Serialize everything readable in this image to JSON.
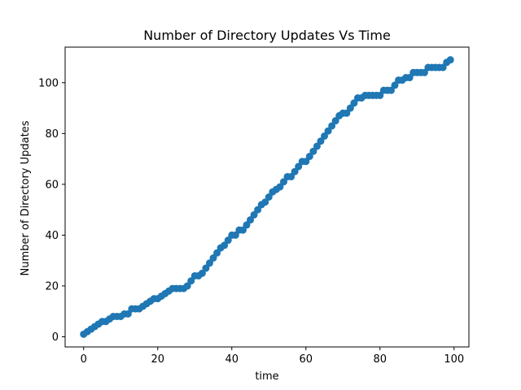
{
  "chart_data": {
    "type": "scatter",
    "title": "Number of Directory Updates Vs Time",
    "xlabel": "time",
    "ylabel": "Number of Directory Updates",
    "xlim": [
      -5,
      104
    ],
    "ylim": [
      -4,
      114
    ],
    "xticks": [
      0,
      20,
      40,
      60,
      80,
      100
    ],
    "yticks": [
      0,
      20,
      40,
      60,
      80,
      100
    ],
    "grid": false,
    "marker_color": "#1f77b4",
    "series": [
      {
        "x": [
          0,
          1,
          2,
          3,
          4,
          5,
          6,
          7,
          8,
          9,
          10,
          11,
          12,
          13,
          14,
          15,
          16,
          17,
          18,
          19,
          20,
          21,
          22,
          23,
          24,
          25,
          26,
          27,
          28,
          29,
          30,
          31,
          32,
          33,
          34,
          35,
          36,
          37,
          38,
          39,
          40,
          41,
          42,
          43,
          44,
          45,
          46,
          47,
          48,
          49,
          50,
          51,
          52,
          53,
          54,
          55,
          56,
          57,
          58,
          59,
          60,
          61,
          62,
          63,
          64,
          65,
          66,
          67,
          68,
          69,
          70,
          71,
          72,
          73,
          74,
          75,
          76,
          77,
          78,
          79,
          80,
          81,
          82,
          83,
          84,
          85,
          86,
          87,
          88,
          89,
          90,
          91,
          92,
          93,
          94,
          95,
          96,
          97,
          98,
          99
        ],
        "y": [
          1,
          2,
          3,
          4,
          5,
          6,
          6,
          7,
          8,
          8,
          8,
          9,
          9,
          11,
          11,
          11,
          12,
          13,
          14,
          15,
          15,
          16,
          17,
          18,
          19,
          19,
          19,
          19,
          20,
          22,
          24,
          24,
          25,
          27,
          29,
          31,
          33,
          35,
          36,
          38,
          40,
          40,
          42,
          42,
          44,
          46,
          48,
          50,
          52,
          53,
          55,
          57,
          58,
          59,
          61,
          63,
          63,
          65,
          67,
          69,
          69,
          71,
          73,
          75,
          77,
          79,
          81,
          83,
          85,
          87,
          88,
          88,
          90,
          92,
          94,
          94,
          95,
          95,
          95,
          95,
          95,
          97,
          97,
          97,
          99,
          101,
          101,
          102,
          102,
          104,
          104,
          104,
          104,
          106,
          106,
          106,
          106,
          106,
          108,
          109
        ]
      }
    ]
  }
}
